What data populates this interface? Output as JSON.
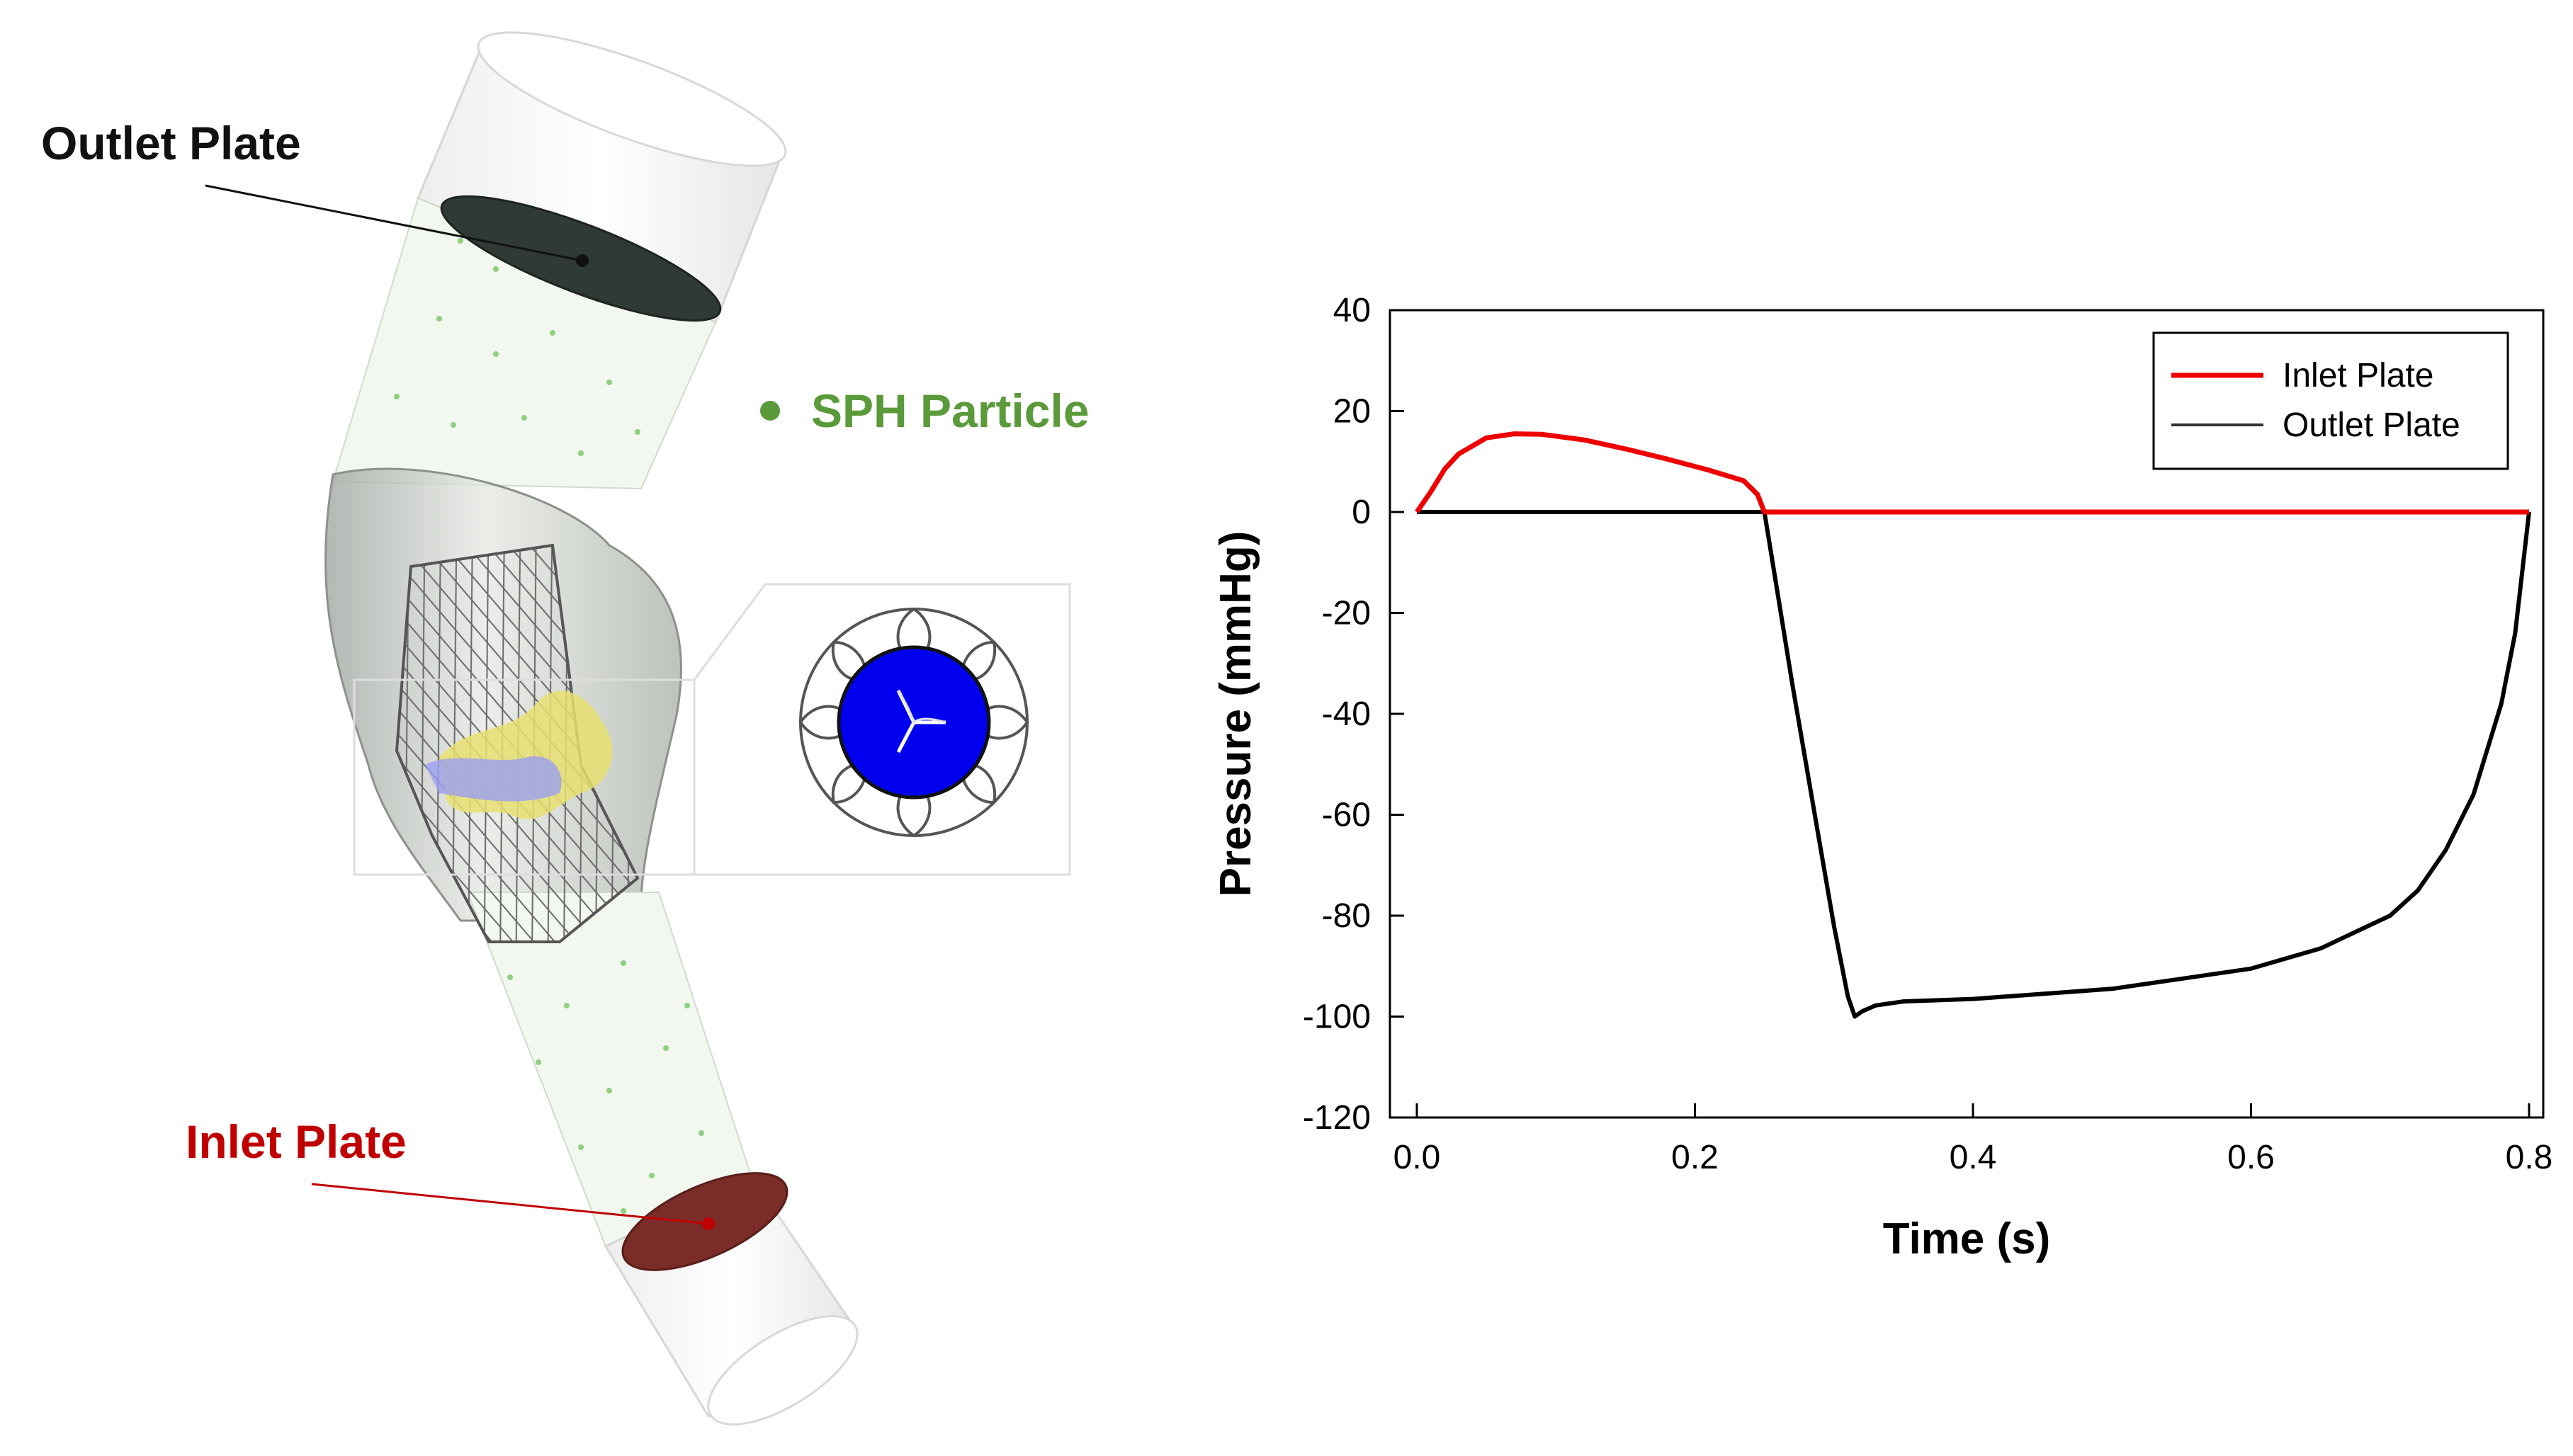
{
  "diagram": {
    "outlet_label": "Outlet Plate",
    "inlet_label": "Inlet Plate",
    "particle_label": "SPH Particle",
    "colors": {
      "outlet_label": "#111111",
      "inlet_label": "#c00000",
      "particle": "#5a9a3a",
      "outlet_plate": "#2f3a34",
      "inlet_plate": "#7a2c28",
      "leaflet": "#0000ee",
      "calcium": "#e8e070",
      "frame_line": "#555555"
    }
  },
  "chart_data": {
    "type": "line",
    "xlabel": "Time (s)",
    "ylabel": "Pressure (mmHg)",
    "xlim": [
      0.0,
      0.8
    ],
    "ylim": [
      -120,
      40
    ],
    "xticks": [
      "0.0",
      "0.2",
      "0.4",
      "0.6",
      "0.8"
    ],
    "yticks": [
      "40",
      "20",
      "0",
      "-20",
      "-40",
      "-60",
      "-80",
      "-100",
      "-120"
    ],
    "legend_position": "top-right",
    "series": [
      {
        "name": "Inlet Plate",
        "color": "#ee0000",
        "x": [
          0.0,
          0.01,
          0.02,
          0.03,
          0.05,
          0.07,
          0.09,
          0.12,
          0.15,
          0.18,
          0.21,
          0.235,
          0.245,
          0.25,
          0.8
        ],
        "y": [
          0,
          4,
          8.5,
          11.5,
          14.7,
          15.5,
          15.4,
          14.3,
          12.5,
          10.5,
          8.3,
          6.2,
          3.5,
          0,
          0
        ]
      },
      {
        "name": "Outlet Plate",
        "color": "#000000",
        "x": [
          0.0,
          0.25,
          0.26,
          0.27,
          0.28,
          0.29,
          0.3,
          0.31,
          0.315,
          0.32,
          0.33,
          0.35,
          0.4,
          0.5,
          0.6,
          0.65,
          0.7,
          0.72,
          0.74,
          0.76,
          0.78,
          0.79,
          0.8
        ],
        "y": [
          0,
          0,
          -17,
          -34,
          -50,
          -66,
          -82,
          -96,
          -100,
          -99,
          -97.8,
          -97,
          -96.5,
          -94.5,
          -90.5,
          -86.5,
          -80,
          -75,
          -67,
          -56,
          -38,
          -24,
          0
        ]
      }
    ]
  }
}
